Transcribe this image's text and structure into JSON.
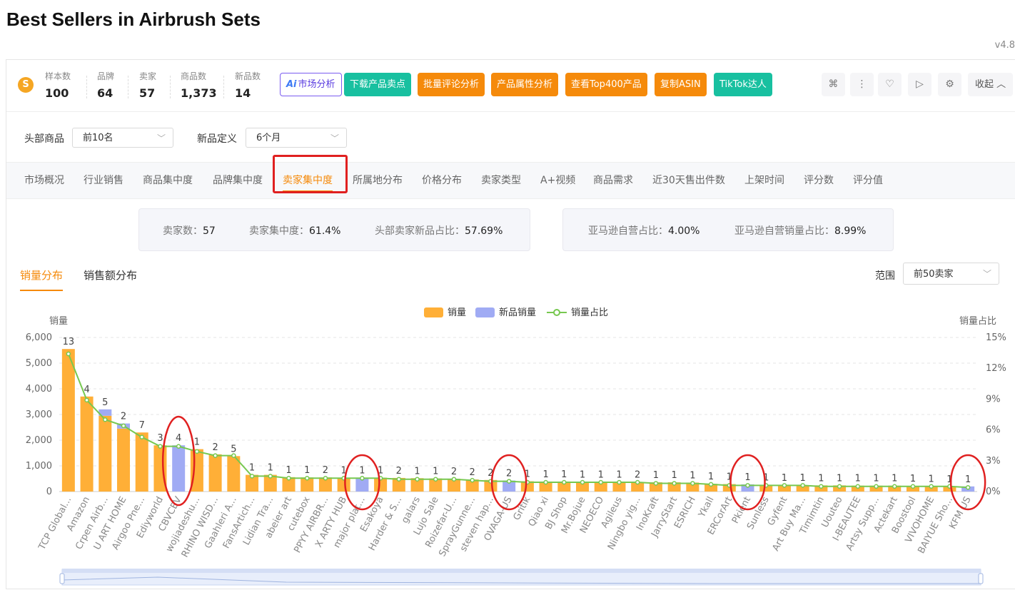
{
  "page": {
    "title": "Best Sellers in Airbrush Sets",
    "version": "v4.8"
  },
  "stats": [
    {
      "label": "样本数",
      "value": "100"
    },
    {
      "label": "品牌",
      "value": "64"
    },
    {
      "label": "卖家",
      "value": "57"
    },
    {
      "label": "商品数",
      "value": "1,373"
    },
    {
      "label": "新品数",
      "value": "14"
    }
  ],
  "toolbar": {
    "ai_prefix": "Ai",
    "ai_label": "市场分析",
    "download_label": "下载产品卖点",
    "review_label": "批量评论分析",
    "attr_label": "产品属性分析",
    "top400_label": "查看Top400产品",
    "copy_asin_label": "复制ASIN",
    "tiktok_label": "TikTok达人",
    "collapse_label": "收起"
  },
  "filters": {
    "head_label": "头部商品",
    "head_value": "前10名",
    "newdef_label": "新品定义",
    "newdef_value": "6个月"
  },
  "tabs": [
    "市场概况",
    "行业销售",
    "商品集中度",
    "品牌集中度",
    "卖家集中度",
    "所属地分布",
    "价格分布",
    "卖家类型",
    "A+视频",
    "商品需求",
    "近30天售出件数",
    "上架时间",
    "评分数",
    "评分值"
  ],
  "summary": {
    "seller_count_label": "卖家数：",
    "seller_count": "57",
    "concentration_label": "卖家集中度：",
    "concentration": "61.4%",
    "head_new_label": "头部卖家新品占比：",
    "head_new": "57.69%",
    "amazon_label": "亚马逊自营占比：",
    "amazon": "4.00%",
    "amazon_sales_label": "亚马逊自营销量占比：",
    "amazon_sales": "8.99%"
  },
  "subtabs": {
    "volume": "销量分布",
    "revenue": "销售额分布"
  },
  "range": {
    "label": "范围",
    "value": "前50卖家"
  },
  "chart_data": {
    "type": "bar",
    "legend": [
      "销量",
      "新品销量",
      "销量占比"
    ],
    "ylabel": "销量",
    "y2label": "销量占比",
    "ylim": [
      0,
      6000
    ],
    "y2lim": [
      0,
      15
    ],
    "yticks": [
      "0",
      "1,000",
      "2,000",
      "3,000",
      "4,000",
      "5,000",
      "6,000"
    ],
    "y2ticks": [
      "0%",
      "3%",
      "6%",
      "9%",
      "12%",
      "15%"
    ],
    "categories": [
      "TCP Global...",
      "Amazon",
      "Crpen Airb...",
      "U ART HOME",
      "Airgoo Pne...",
      "Ediyworld",
      "CBVCBV",
      "wojiadeshu...",
      "RHINO WISD...",
      "Gaahleri A...",
      "FansArtich...",
      "Lidian Tra...",
      "abeier art",
      "cutebox",
      "PPYY AIRBR...",
      "X ARTY HUB",
      "major plat...",
      "Esakoya",
      "Harder & S...",
      "galars",
      "Lujo Sale",
      "Roizefar-U...",
      "SprayGunne...",
      "steven hap...",
      "OVAGA-US",
      "Gritik",
      "Qiao xi",
      "BJ Shop",
      "Mr.Bojue",
      "NEOECO",
      "Agileus",
      "Ningbo yig...",
      "InoKraft",
      "JarryStart",
      "ESRICH",
      "Ykall",
      "ERCorArt",
      "Pkient",
      "Sunless",
      "Gyfent",
      "Art Buy Ma...",
      "Timimtin",
      "Uouteo",
      "I-BEAUTEE",
      "Artsy Supp...",
      "Actekart",
      "Boostool",
      "VIVOHOME",
      "BAIYUE Sho...",
      "KFM US"
    ],
    "series": [
      {
        "name": "销量",
        "values": [
          5550,
          3700,
          2950,
          2450,
          2300,
          1800,
          0,
          1650,
          1450,
          1380,
          650,
          650,
          560,
          550,
          550,
          540,
          0,
          540,
          530,
          520,
          510,
          500,
          470,
          450,
          0,
          400,
          390,
          390,
          380,
          380,
          370,
          370,
          360,
          360,
          350,
          300,
          290,
          0,
          260,
          250,
          250,
          240,
          240,
          230,
          230,
          230,
          220,
          210,
          200,
          0
        ]
      },
      {
        "name": "新品销量",
        "values": [
          0,
          0,
          0,
          0,
          0,
          0,
          1800,
          0,
          0,
          0,
          0,
          0,
          0,
          0,
          0,
          0,
          540,
          0,
          0,
          0,
          0,
          0,
          0,
          0,
          430,
          0,
          0,
          0,
          0,
          0,
          0,
          0,
          0,
          0,
          0,
          0,
          0,
          280,
          0,
          0,
          0,
          0,
          0,
          0,
          0,
          0,
          0,
          0,
          0,
          200
        ]
      },
      {
        "name": "销量占比",
        "values": [
          13.4,
          8.9,
          7.0,
          6.4,
          5.3,
          4.4,
          4.4,
          3.9,
          3.5,
          3.5,
          1.5,
          1.5,
          1.3,
          1.3,
          1.3,
          1.3,
          1.3,
          1.3,
          1.2,
          1.2,
          1.2,
          1.2,
          1.1,
          1.0,
          1.0,
          0.9,
          0.9,
          0.9,
          0.9,
          0.9,
          0.9,
          0.9,
          0.8,
          0.8,
          0.8,
          0.7,
          0.6,
          0.6,
          0.6,
          0.6,
          0.6,
          0.5,
          0.5,
          0.5,
          0.5,
          0.5,
          0.5,
          0.5,
          0.5,
          0.4
        ]
      }
    ],
    "stack_segment": [
      {
        "index": 2,
        "value": 250
      },
      {
        "index": 3,
        "value": 200
      }
    ],
    "labels": [
      "13",
      "4",
      "5",
      "2",
      "7",
      "3",
      "4",
      "1",
      "2",
      "5",
      "1",
      "1",
      "1",
      "1",
      "2",
      "1",
      "1",
      "1",
      "2",
      "1",
      "1",
      "2",
      "2",
      "2",
      "2",
      "1",
      "1",
      "1",
      "1",
      "1",
      "1",
      "2",
      "1",
      "1",
      "1",
      "1",
      "1",
      "1",
      "1",
      "1",
      "1",
      "1",
      "1",
      "1",
      "1",
      "1",
      "1",
      "1",
      "1",
      "1"
    ],
    "circled": [
      6,
      16,
      24,
      37,
      49
    ],
    "colors": {
      "bar": "#ffaf37",
      "new": "#a0abf4",
      "line": "#77c850",
      "circle": "#e02020"
    },
    "grid": true,
    "legend_position": "top-center"
  }
}
